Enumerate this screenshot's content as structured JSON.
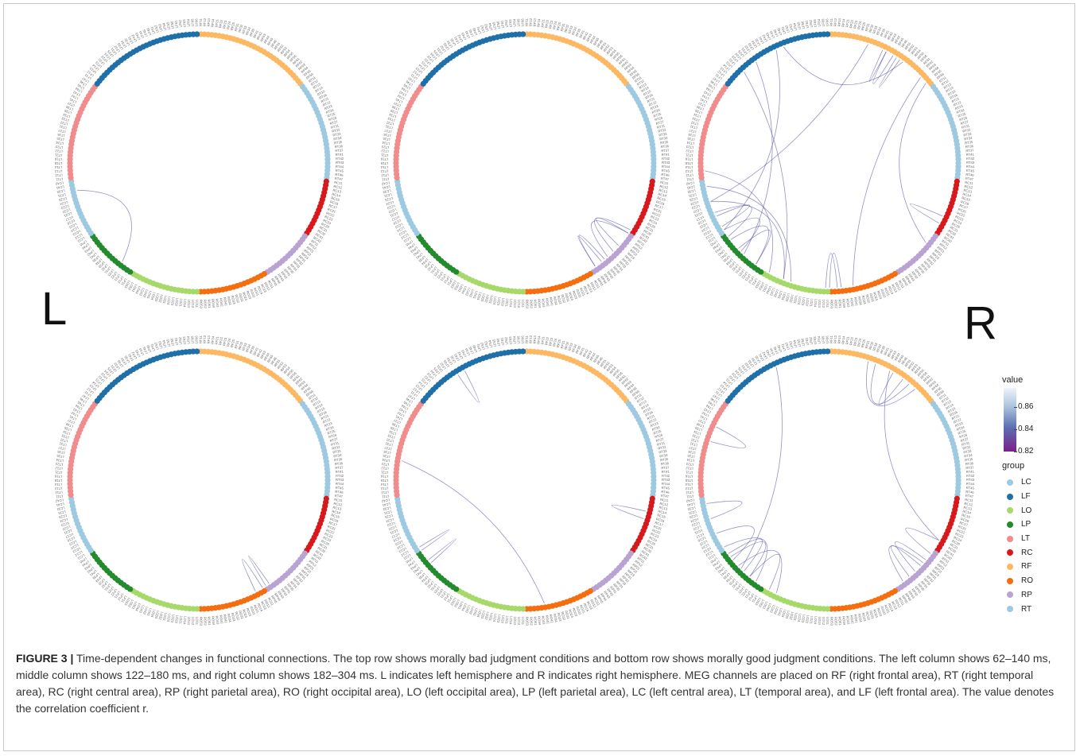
{
  "figure": {
    "hemisphere_left": "L",
    "hemisphere_right": "R",
    "caption_label": "FIGURE 3 |",
    "caption_text": " Time-dependent changes in functional connections. The top row shows morally bad judgment conditions and bottom row shows morally good judgment conditions. The left column shows 62–140 ms, middle column shows 122–180 ms, and right column shows 182–304 ms. L indicates left hemisphere and R indicates right hemisphere. MEG channels are placed on RF (right frontal area), RT (right temporal area), RC (right central area), RP (right parietal area), RO (right occipital area), LO (left occipital area), LP (left parietal area), LC (left central area), LT (temporal area), and LF (left frontal area). The value denotes the correlation coefficient r."
  },
  "legend": {
    "value_title": "value",
    "value_ticks": [
      "0.86",
      "0.84",
      "0.82"
    ],
    "group_title": "group",
    "groups": [
      {
        "name": "LC",
        "color": "#9ecae1"
      },
      {
        "name": "LF",
        "color": "#1f6fa8"
      },
      {
        "name": "LO",
        "color": "#a6d96a"
      },
      {
        "name": "LP",
        "color": "#238b2d"
      },
      {
        "name": "LT",
        "color": "#f08c8c"
      },
      {
        "name": "RC",
        "color": "#d7191c"
      },
      {
        "name": "RF",
        "color": "#fdb863"
      },
      {
        "name": "RO",
        "color": "#f46d0f"
      },
      {
        "name": "RP",
        "color": "#b9a3d3"
      },
      {
        "name": "RT",
        "color": "#9ecae1"
      }
    ],
    "link_color": "#5a57a8"
  },
  "channels": {
    "RF": [
      "RF11",
      "RF12",
      "RF13",
      "RF14",
      "RF21",
      "RF22",
      "RF23",
      "RF24",
      "RF25",
      "RF31",
      "RF32",
      "RF33",
      "RF34",
      "RF35",
      "RF41",
      "RF42",
      "RF43",
      "RF44",
      "RF45",
      "RF46",
      "RF51",
      "RF52",
      "RF53",
      "RF54",
      "RF55",
      "RF56",
      "RF61",
      "RF62",
      "RF63",
      "RF64",
      "RF65",
      "RF66"
    ],
    "RT": [
      "RT11",
      "RT12",
      "RT13",
      "RT14",
      "RT15",
      "RT16",
      "RT21",
      "RT22",
      "RT23",
      "RT24",
      "RT25",
      "RT26",
      "RT27",
      "RT31",
      "RT32",
      "RT33",
      "RT34",
      "RT35",
      "RT36",
      "RT37",
      "RT41",
      "RT42",
      "RT43",
      "RT44",
      "RT45",
      "RT46",
      "RT47"
    ],
    "RC": [
      "RC11",
      "RC12",
      "RC13",
      "RC14",
      "RC15",
      "RC16",
      "RC17",
      "RC21",
      "RC22",
      "RC23",
      "RC24",
      "RC25",
      "RC31",
      "RC32",
      "RC41",
      "RC42"
    ],
    "RP": [
      "RP11",
      "RP12",
      "RP21",
      "RP22",
      "RP23",
      "RP31",
      "RP32",
      "RP33",
      "RP34",
      "RP35",
      "RP41",
      "RP42",
      "RP43",
      "RP44",
      "RP45"
    ],
    "RO": [
      "RO11",
      "RO12",
      "RO13",
      "RO14",
      "RO21",
      "RO22",
      "RO23",
      "RO24",
      "RO31",
      "RO32",
      "RO33",
      "RO34",
      "RO41",
      "RO42",
      "RO43",
      "RO44",
      "RO51",
      "RO52",
      "RO53"
    ],
    "LO": [
      "LO11",
      "LO12",
      "LO13",
      "LO14",
      "LO21",
      "LO22",
      "LO23",
      "LO24",
      "LO31",
      "LO32",
      "LO33",
      "LO34",
      "LO41",
      "LO42",
      "LO43",
      "LO44",
      "LO51",
      "LO52",
      "LO53"
    ],
    "LP": [
      "LP11",
      "LP12",
      "LP21",
      "LP22",
      "LP23",
      "LP31",
      "LP32",
      "LP33",
      "LP34",
      "LP35",
      "LP41",
      "LP42",
      "LP43",
      "LP44",
      "LP45"
    ],
    "LC": [
      "LC11",
      "LC12",
      "LC13",
      "LC14",
      "LC15",
      "LC16",
      "LC17",
      "LC21",
      "LC22",
      "LC23",
      "LC24",
      "LC25",
      "LC31",
      "LC32",
      "LC41",
      "LC42"
    ],
    "LT": [
      "LT11",
      "LT12",
      "LT13",
      "LT14",
      "LT15",
      "LT16",
      "LT21",
      "LT22",
      "LT23",
      "LT24",
      "LT25",
      "LT26",
      "LT27",
      "LT31",
      "LT32",
      "LT33",
      "LT34",
      "LT35",
      "LT36",
      "LT37",
      "LT41",
      "LT42",
      "LT43",
      "LT44",
      "LT45",
      "LT46",
      "LT47"
    ],
    "LF": [
      "LF11",
      "LF12",
      "LF13",
      "LF14",
      "LF21",
      "LF22",
      "LF23",
      "LF24",
      "LF25",
      "LF31",
      "LF32",
      "LF33",
      "LF34",
      "LF35",
      "LF41",
      "LF42",
      "LF43",
      "LF44",
      "LF45",
      "LF46",
      "LF51",
      "LF52",
      "LF53",
      "LF54",
      "LF55",
      "LF56",
      "LF61",
      "LF62",
      "LF63",
      "LF64",
      "LF65",
      "LF66"
    ]
  },
  "panels": [
    {
      "id": "bad-62-140",
      "links": [
        [
          0.715,
          0.605
        ]
      ]
    },
    {
      "id": "bad-122-180",
      "links": [
        [
          0.365,
          0.345
        ],
        [
          0.375,
          0.34
        ],
        [
          0.385,
          0.345
        ],
        [
          0.405,
          0.395
        ],
        [
          0.405,
          0.39
        ]
      ]
    },
    {
      "id": "bad-182-304",
      "links": [
        [
          0.05,
          0.7
        ],
        [
          0.1,
          0.94
        ],
        [
          0.13,
          0.47
        ],
        [
          0.14,
          0.36
        ],
        [
          0.88,
          0.56
        ],
        [
          0.62,
          0.9
        ],
        [
          0.66,
          0.93
        ],
        [
          0.6,
          0.63
        ],
        [
          0.625,
          0.66
        ],
        [
          0.65,
          0.685
        ],
        [
          0.6,
          0.645
        ],
        [
          0.5,
          0.485
        ],
        [
          0.505,
          0.49
        ],
        [
          0.56,
          0.7
        ],
        [
          0.58,
          0.74
        ],
        [
          0.55,
          0.72
        ],
        [
          0.095,
          0.09
        ],
        [
          0.085,
          0.075
        ],
        [
          0.075,
          0.07
        ],
        [
          0.33,
          0.32
        ],
        [
          0.68,
          0.665
        ]
      ]
    },
    {
      "id": "good-62-140",
      "links": [
        [
          0.425,
          0.415
        ],
        [
          0.41,
          0.405
        ]
      ]
    },
    {
      "id": "good-122-180",
      "links": [
        [
          0.775,
          0.475
        ],
        [
          0.64,
          0.635
        ],
        [
          0.66,
          0.655
        ],
        [
          0.3,
          0.29
        ],
        [
          0.92,
          0.91
        ]
      ]
    },
    {
      "id": "good-182-304",
      "links": [
        [
          0.93,
          0.625
        ],
        [
          0.08,
          0.33
        ],
        [
          0.6,
          0.66
        ],
        [
          0.62,
          0.65
        ],
        [
          0.61,
          0.645
        ],
        [
          0.58,
          0.61
        ],
        [
          0.57,
          0.63
        ],
        [
          0.64,
          0.68
        ],
        [
          0.4,
          0.365
        ],
        [
          0.39,
          0.37
        ],
        [
          0.38,
          0.36
        ],
        [
          0.11,
          0.06
        ],
        [
          0.12,
          0.05
        ],
        [
          0.1,
          0.085
        ],
        [
          0.35,
          0.33
        ],
        [
          0.72,
          0.7
        ],
        [
          0.82,
          0.8
        ]
      ]
    }
  ]
}
